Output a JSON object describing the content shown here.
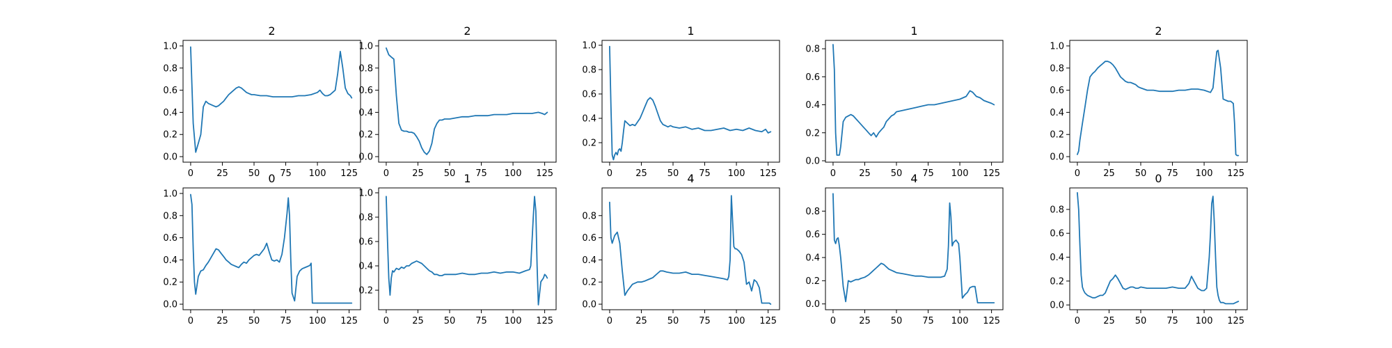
{
  "colors": {
    "series": "#1f77b4"
  },
  "chart_data": [
    {
      "type": "line",
      "title": "2",
      "xlim": [
        -6,
        134
      ],
      "ylim": [
        -0.05,
        1.05
      ],
      "xticks": [
        0,
        25,
        50,
        75,
        100,
        125
      ],
      "yticks": [
        0.0,
        0.2,
        0.4,
        0.6,
        0.8,
        1.0
      ],
      "ytick_labels": [
        "0.0",
        "0.2",
        "0.4",
        "0.6",
        "0.8",
        "1.0"
      ],
      "x": [
        0,
        2,
        4,
        6,
        8,
        10,
        12,
        14,
        16,
        18,
        20,
        22,
        24,
        26,
        28,
        30,
        32,
        34,
        36,
        38,
        40,
        42,
        44,
        46,
        48,
        50,
        55,
        60,
        65,
        70,
        75,
        80,
        85,
        90,
        95,
        100,
        102,
        104,
        106,
        108,
        110,
        112,
        114,
        116,
        118,
        120,
        122,
        124,
        126,
        127
      ],
      "values": [
        0.99,
        0.3,
        0.04,
        0.12,
        0.2,
        0.45,
        0.5,
        0.48,
        0.47,
        0.46,
        0.45,
        0.46,
        0.48,
        0.5,
        0.53,
        0.56,
        0.58,
        0.6,
        0.62,
        0.63,
        0.62,
        0.6,
        0.58,
        0.57,
        0.56,
        0.56,
        0.55,
        0.55,
        0.54,
        0.54,
        0.54,
        0.54,
        0.55,
        0.55,
        0.56,
        0.58,
        0.6,
        0.57,
        0.55,
        0.55,
        0.56,
        0.58,
        0.6,
        0.75,
        0.95,
        0.8,
        0.62,
        0.57,
        0.55,
        0.53
      ]
    },
    {
      "type": "line",
      "title": "2",
      "xlim": [
        -6,
        134
      ],
      "ylim": [
        -0.05,
        1.05
      ],
      "xticks": [
        0,
        25,
        50,
        75,
        100,
        125
      ],
      "yticks": [
        0.0,
        0.2,
        0.4,
        0.6,
        0.8,
        1.0
      ],
      "ytick_labels": [
        "0.0",
        "0.2",
        "0.4",
        "0.6",
        "0.8",
        "1.0"
      ],
      "x": [
        0,
        2,
        4,
        6,
        8,
        10,
        12,
        14,
        16,
        18,
        20,
        22,
        24,
        26,
        28,
        30,
        32,
        34,
        36,
        38,
        40,
        42,
        44,
        46,
        48,
        50,
        55,
        60,
        65,
        70,
        75,
        80,
        85,
        90,
        95,
        100,
        105,
        110,
        115,
        120,
        123,
        125,
        127
      ],
      "values": [
        0.98,
        0.92,
        0.9,
        0.88,
        0.55,
        0.3,
        0.24,
        0.23,
        0.23,
        0.22,
        0.22,
        0.21,
        0.18,
        0.14,
        0.08,
        0.04,
        0.02,
        0.05,
        0.12,
        0.25,
        0.3,
        0.33,
        0.33,
        0.34,
        0.34,
        0.34,
        0.35,
        0.36,
        0.36,
        0.37,
        0.37,
        0.37,
        0.38,
        0.38,
        0.38,
        0.39,
        0.39,
        0.39,
        0.39,
        0.4,
        0.39,
        0.38,
        0.4
      ]
    },
    {
      "type": "line",
      "title": "1",
      "xlim": [
        -6,
        134
      ],
      "ylim": [
        0.04,
        1.04
      ],
      "xticks": [
        0,
        25,
        50,
        75,
        100,
        125
      ],
      "yticks": [
        0.2,
        0.4,
        0.6,
        0.8,
        1.0
      ],
      "ytick_labels": [
        "0.2",
        "0.4",
        "0.6",
        "0.8",
        "1.0"
      ],
      "x": [
        0,
        1,
        2,
        3,
        4,
        5,
        6,
        7,
        8,
        9,
        10,
        11,
        12,
        14,
        16,
        18,
        20,
        22,
        24,
        26,
        28,
        30,
        32,
        34,
        36,
        38,
        40,
        42,
        44,
        46,
        48,
        50,
        55,
        60,
        65,
        70,
        75,
        80,
        85,
        90,
        95,
        100,
        105,
        110,
        115,
        120,
        123,
        125,
        127
      ],
      "values": [
        0.99,
        0.5,
        0.1,
        0.06,
        0.1,
        0.12,
        0.1,
        0.14,
        0.15,
        0.13,
        0.2,
        0.3,
        0.38,
        0.36,
        0.34,
        0.35,
        0.34,
        0.37,
        0.4,
        0.45,
        0.5,
        0.55,
        0.57,
        0.55,
        0.5,
        0.44,
        0.38,
        0.35,
        0.34,
        0.33,
        0.34,
        0.33,
        0.32,
        0.33,
        0.31,
        0.32,
        0.3,
        0.3,
        0.31,
        0.32,
        0.3,
        0.31,
        0.3,
        0.32,
        0.3,
        0.29,
        0.31,
        0.28,
        0.29
      ]
    },
    {
      "type": "line",
      "title": "1",
      "xlim": [
        -6,
        134
      ],
      "ylim": [
        -0.01,
        0.86
      ],
      "xticks": [
        0,
        25,
        50,
        75,
        100,
        125
      ],
      "yticks": [
        0.0,
        0.2,
        0.4,
        0.6,
        0.8
      ],
      "ytick_labels": [
        "0.0",
        "0.2",
        "0.4",
        "0.6",
        "0.8"
      ],
      "x": [
        0,
        1,
        2,
        3,
        4,
        5,
        6,
        8,
        10,
        12,
        14,
        16,
        18,
        20,
        22,
        24,
        26,
        28,
        30,
        32,
        34,
        36,
        38,
        40,
        42,
        44,
        46,
        48,
        50,
        55,
        60,
        65,
        70,
        75,
        80,
        85,
        90,
        95,
        100,
        105,
        108,
        110,
        113,
        116,
        119,
        122,
        125,
        127
      ],
      "values": [
        0.83,
        0.65,
        0.2,
        0.04,
        0.04,
        0.04,
        0.1,
        0.28,
        0.31,
        0.32,
        0.33,
        0.32,
        0.3,
        0.28,
        0.26,
        0.24,
        0.22,
        0.2,
        0.18,
        0.2,
        0.17,
        0.2,
        0.22,
        0.24,
        0.28,
        0.3,
        0.32,
        0.33,
        0.35,
        0.36,
        0.37,
        0.38,
        0.39,
        0.4,
        0.4,
        0.41,
        0.42,
        0.43,
        0.44,
        0.46,
        0.5,
        0.49,
        0.46,
        0.45,
        0.43,
        0.42,
        0.41,
        0.4
      ]
    },
    {
      "type": "line",
      "title": "2",
      "xlim": [
        -6,
        134
      ],
      "ylim": [
        -0.05,
        1.05
      ],
      "xticks": [
        0,
        25,
        50,
        75,
        100,
        125
      ],
      "yticks": [
        0.0,
        0.2,
        0.4,
        0.6,
        0.8,
        1.0
      ],
      "ytick_labels": [
        "0.0",
        "0.2",
        "0.4",
        "0.6",
        "0.8",
        "1.0"
      ],
      "x": [
        0,
        1,
        2,
        4,
        6,
        8,
        10,
        12,
        14,
        16,
        18,
        20,
        22,
        24,
        26,
        28,
        30,
        32,
        34,
        36,
        38,
        40,
        42,
        44,
        46,
        48,
        50,
        55,
        60,
        65,
        70,
        75,
        80,
        85,
        90,
        95,
        100,
        105,
        107,
        109,
        110,
        111,
        113,
        115,
        117,
        119,
        121,
        123,
        124,
        125,
        126,
        127
      ],
      "values": [
        0.02,
        0.05,
        0.15,
        0.3,
        0.45,
        0.6,
        0.72,
        0.75,
        0.77,
        0.8,
        0.82,
        0.84,
        0.86,
        0.86,
        0.85,
        0.83,
        0.8,
        0.76,
        0.72,
        0.7,
        0.68,
        0.67,
        0.67,
        0.66,
        0.65,
        0.63,
        0.62,
        0.6,
        0.6,
        0.59,
        0.59,
        0.59,
        0.6,
        0.6,
        0.61,
        0.61,
        0.6,
        0.58,
        0.62,
        0.85,
        0.95,
        0.96,
        0.8,
        0.52,
        0.51,
        0.5,
        0.5,
        0.48,
        0.3,
        0.02,
        0.01,
        0.01
      ]
    },
    {
      "type": "line",
      "title": "0",
      "xlim": [
        -6,
        134
      ],
      "ylim": [
        -0.05,
        1.05
      ],
      "xticks": [
        0,
        25,
        50,
        75,
        100,
        125
      ],
      "yticks": [
        0.0,
        0.2,
        0.4,
        0.6,
        0.8,
        1.0
      ],
      "ytick_labels": [
        "0.0",
        "0.2",
        "0.4",
        "0.6",
        "0.8",
        "1.0"
      ],
      "x": [
        0,
        1,
        2,
        3,
        4,
        6,
        8,
        10,
        12,
        14,
        16,
        18,
        20,
        22,
        24,
        26,
        28,
        30,
        32,
        34,
        36,
        38,
        40,
        42,
        44,
        46,
        48,
        50,
        52,
        54,
        56,
        58,
        60,
        62,
        64,
        66,
        68,
        70,
        72,
        74,
        76,
        77,
        78,
        79,
        80,
        82,
        84,
        86,
        88,
        90,
        92,
        94,
        95,
        96,
        100,
        105,
        110,
        115,
        120,
        125,
        127
      ],
      "values": [
        0.99,
        0.9,
        0.5,
        0.2,
        0.09,
        0.25,
        0.3,
        0.31,
        0.35,
        0.38,
        0.42,
        0.46,
        0.5,
        0.49,
        0.46,
        0.43,
        0.4,
        0.38,
        0.36,
        0.35,
        0.34,
        0.33,
        0.36,
        0.38,
        0.37,
        0.4,
        0.42,
        0.44,
        0.45,
        0.44,
        0.47,
        0.5,
        0.55,
        0.47,
        0.4,
        0.39,
        0.4,
        0.38,
        0.45,
        0.6,
        0.82,
        0.96,
        0.8,
        0.4,
        0.1,
        0.03,
        0.25,
        0.3,
        0.32,
        0.33,
        0.34,
        0.35,
        0.37,
        0.01,
        0.01,
        0.01,
        0.01,
        0.01,
        0.01,
        0.01,
        0.01
      ]
    },
    {
      "type": "line",
      "title": "1",
      "xlim": [
        -6,
        134
      ],
      "ylim": [
        0.04,
        1.04
      ],
      "xticks": [
        0,
        25,
        50,
        75,
        100,
        125
      ],
      "yticks": [
        0.2,
        0.4,
        0.6,
        0.8,
        1.0
      ],
      "ytick_labels": [
        "0.2",
        "0.4",
        "0.6",
        "0.8",
        "1.0"
      ],
      "x": [
        0,
        1,
        2,
        3,
        4,
        5,
        6,
        8,
        10,
        12,
        14,
        16,
        18,
        20,
        22,
        24,
        26,
        28,
        30,
        32,
        34,
        36,
        38,
        40,
        42,
        44,
        46,
        48,
        50,
        55,
        60,
        65,
        70,
        75,
        80,
        85,
        90,
        95,
        100,
        105,
        110,
        113,
        114,
        115,
        116,
        117,
        118,
        119,
        120,
        122,
        124,
        125,
        126,
        127
      ],
      "values": [
        0.97,
        0.6,
        0.3,
        0.16,
        0.3,
        0.36,
        0.35,
        0.38,
        0.37,
        0.39,
        0.38,
        0.4,
        0.4,
        0.42,
        0.43,
        0.44,
        0.43,
        0.42,
        0.4,
        0.38,
        0.36,
        0.35,
        0.33,
        0.33,
        0.32,
        0.32,
        0.33,
        0.33,
        0.33,
        0.33,
        0.34,
        0.33,
        0.33,
        0.34,
        0.34,
        0.35,
        0.34,
        0.35,
        0.35,
        0.34,
        0.36,
        0.37,
        0.4,
        0.6,
        0.8,
        0.97,
        0.85,
        0.4,
        0.08,
        0.27,
        0.3,
        0.33,
        0.32,
        0.3
      ]
    },
    {
      "type": "line",
      "title": "4",
      "xlim": [
        -6,
        134
      ],
      "ylim": [
        -0.05,
        1.05
      ],
      "xticks": [
        0,
        25,
        50,
        75,
        100,
        125
      ],
      "yticks": [
        0.0,
        0.2,
        0.4,
        0.6,
        0.8
      ],
      "ytick_labels": [
        "0.0",
        "0.2",
        "0.4",
        "0.6",
        "0.8"
      ],
      "x": [
        0,
        1,
        2,
        4,
        6,
        8,
        10,
        12,
        14,
        16,
        18,
        20,
        22,
        25,
        28,
        30,
        32,
        34,
        36,
        38,
        40,
        42,
        45,
        50,
        55,
        60,
        65,
        70,
        75,
        80,
        85,
        90,
        93,
        94,
        95,
        96,
        97,
        98,
        99,
        100,
        102,
        104,
        106,
        108,
        110,
        112,
        114,
        116,
        118,
        120,
        122,
        124,
        126,
        127
      ],
      "values": [
        0.92,
        0.6,
        0.55,
        0.62,
        0.65,
        0.55,
        0.3,
        0.08,
        0.12,
        0.15,
        0.18,
        0.19,
        0.2,
        0.2,
        0.21,
        0.22,
        0.23,
        0.24,
        0.26,
        0.28,
        0.3,
        0.3,
        0.29,
        0.28,
        0.28,
        0.29,
        0.27,
        0.27,
        0.26,
        0.25,
        0.24,
        0.23,
        0.22,
        0.25,
        0.4,
        0.98,
        0.75,
        0.52,
        0.5,
        0.5,
        0.48,
        0.45,
        0.38,
        0.18,
        0.2,
        0.12,
        0.22,
        0.2,
        0.15,
        0.01,
        0.01,
        0.01,
        0.01,
        0.0
      ]
    },
    {
      "type": "line",
      "title": "4",
      "xlim": [
        -6,
        134
      ],
      "ylim": [
        -0.05,
        1.0
      ],
      "xticks": [
        0,
        25,
        50,
        75,
        100,
        125
      ],
      "yticks": [
        0.0,
        0.2,
        0.4,
        0.6,
        0.8
      ],
      "ytick_labels": [
        "0.0",
        "0.2",
        "0.4",
        "0.6",
        "0.8"
      ],
      "x": [
        0,
        1,
        2,
        3,
        4,
        5,
        6,
        8,
        10,
        12,
        14,
        16,
        18,
        20,
        22,
        25,
        28,
        30,
        32,
        34,
        36,
        38,
        40,
        42,
        44,
        46,
        48,
        50,
        55,
        60,
        65,
        70,
        75,
        80,
        85,
        88,
        90,
        91,
        92,
        93,
        94,
        95,
        97,
        99,
        100,
        102,
        104,
        106,
        108,
        110,
        112,
        114,
        116,
        118,
        120,
        125,
        127
      ],
      "values": [
        0.95,
        0.55,
        0.52,
        0.56,
        0.57,
        0.5,
        0.4,
        0.15,
        0.02,
        0.2,
        0.19,
        0.2,
        0.21,
        0.21,
        0.22,
        0.23,
        0.25,
        0.27,
        0.29,
        0.31,
        0.33,
        0.35,
        0.34,
        0.32,
        0.3,
        0.29,
        0.28,
        0.27,
        0.26,
        0.25,
        0.24,
        0.24,
        0.23,
        0.23,
        0.23,
        0.24,
        0.3,
        0.5,
        0.87,
        0.75,
        0.5,
        0.53,
        0.55,
        0.52,
        0.4,
        0.05,
        0.08,
        0.1,
        0.14,
        0.15,
        0.15,
        0.01,
        0.01,
        0.01,
        0.01,
        0.01,
        0.01
      ]
    },
    {
      "type": "line",
      "title": "0",
      "xlim": [
        -6,
        134
      ],
      "ylim": [
        -0.04,
        0.98
      ],
      "xticks": [
        0,
        25,
        50,
        75,
        100,
        125
      ],
      "yticks": [
        0.0,
        0.2,
        0.4,
        0.6,
        0.8
      ],
      "ytick_labels": [
        "0.0",
        "0.2",
        "0.4",
        "0.6",
        "0.8"
      ],
      "x": [
        0,
        1,
        2,
        3,
        4,
        5,
        6,
        8,
        10,
        12,
        14,
        16,
        18,
        20,
        22,
        24,
        26,
        28,
        30,
        32,
        34,
        36,
        38,
        40,
        42,
        44,
        46,
        48,
        50,
        55,
        60,
        65,
        70,
        75,
        80,
        85,
        88,
        90,
        92,
        95,
        98,
        100,
        102,
        104,
        105,
        106,
        107,
        108,
        109,
        110,
        111,
        112,
        113,
        115,
        117,
        120,
        123,
        125,
        127
      ],
      "values": [
        0.94,
        0.8,
        0.5,
        0.25,
        0.15,
        0.12,
        0.1,
        0.08,
        0.07,
        0.06,
        0.06,
        0.07,
        0.08,
        0.08,
        0.1,
        0.15,
        0.2,
        0.22,
        0.25,
        0.22,
        0.18,
        0.14,
        0.13,
        0.14,
        0.15,
        0.15,
        0.14,
        0.14,
        0.15,
        0.14,
        0.14,
        0.14,
        0.14,
        0.15,
        0.14,
        0.14,
        0.18,
        0.24,
        0.2,
        0.14,
        0.12,
        0.12,
        0.14,
        0.4,
        0.6,
        0.85,
        0.91,
        0.7,
        0.4,
        0.15,
        0.08,
        0.04,
        0.02,
        0.02,
        0.01,
        0.01,
        0.01,
        0.02,
        0.03
      ]
    }
  ]
}
